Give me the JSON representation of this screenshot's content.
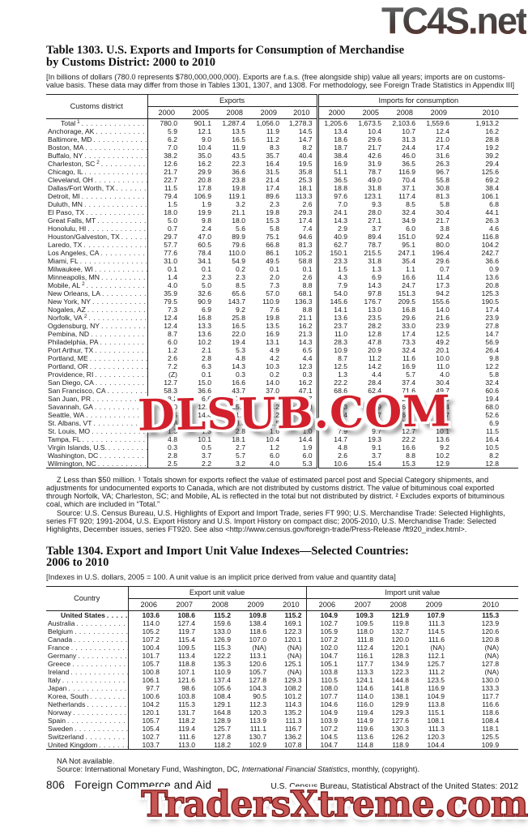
{
  "watermarks": {
    "top": "TC4S.net",
    "middle": "DLSUB.COM",
    "bottom": "TradersXtreme.com"
  },
  "colors": {
    "watermark_mid_red": "#d2202c",
    "watermark_bottom_red": "#c75654",
    "watermark_top_brown": "#7a3a30",
    "text": "#1a1a1a"
  },
  "table1303": {
    "title_line1": "Table 1303. U.S. Exports and Imports for Consumption of Merchandise",
    "title_line2": "by Customs District: 2000 to 2010",
    "note": "[In billions of dollars (780.0 represents $780,000,000,000). Exports are f.a.s. (free alongside ship) value all years; imports are on customs-value basis. These data may differ from those in Tables 1301, 1307, and 1308. For methodology, see Foreign Trade Statistics in Appendix III]",
    "header": {
      "label": "Customs district",
      "exports": "Exports",
      "imports": "Imports for consumption"
    },
    "years": [
      "2000",
      "2005",
      "2008",
      "2009",
      "2010"
    ],
    "rows": [
      {
        "l": "Total",
        "s": "1",
        "ind": true,
        "e": [
          "780.0",
          "901.1",
          "1,287.4",
          "1,056.0",
          "1,278.3"
        ],
        "i": [
          "1,205.6",
          "1,673.5",
          "2,103.6",
          "1,559.6",
          "1,913.2"
        ]
      },
      {
        "l": "Anchorage, AK",
        "e": [
          "5.9",
          "12.1",
          "13.5",
          "11.9",
          "14.5"
        ],
        "i": [
          "13.4",
          "10.4",
          "10.7",
          "12.4",
          "16.2"
        ]
      },
      {
        "l": "Baltimore, MD",
        "e": [
          "6.2",
          "9.0",
          "16.5",
          "11.2",
          "14.7"
        ],
        "i": [
          "18.6",
          "29.6",
          "31.3",
          "21.0",
          "28.8"
        ]
      },
      {
        "l": "Boston, MA",
        "e": [
          "7.0",
          "10.4",
          "11.9",
          "8.3",
          "8.2"
        ],
        "i": [
          "18.7",
          "21.7",
          "24.4",
          "17.4",
          "19.2"
        ]
      },
      {
        "l": "Buffalo, NY",
        "e": [
          "38.2",
          "35.0",
          "43.5",
          "35.7",
          "40.4"
        ],
        "i": [
          "38.4",
          "42.6",
          "46.0",
          "31.6",
          "39.2"
        ]
      },
      {
        "l": "Charleston, SC",
        "s": "2",
        "e": [
          "12.6",
          "16.2",
          "22.3",
          "16.4",
          "19.5"
        ],
        "i": [
          "16.9",
          "31.9",
          "36.5",
          "26.3",
          "29.4"
        ]
      },
      {
        "l": "Chicago, IL",
        "e": [
          "21.7",
          "29.9",
          "36.6",
          "31.5",
          "35.8"
        ],
        "i": [
          "51.1",
          "78.7",
          "116.9",
          "96.7",
          "125.6"
        ]
      },
      {
        "l": "Cleveland, OH",
        "e": [
          "22.7",
          "20.8",
          "23.8",
          "21.4",
          "25.3"
        ],
        "i": [
          "36.5",
          "49.0",
          "70.4",
          "55.8",
          "69.2"
        ]
      },
      {
        "l": "Dallas/Fort Worth, TX",
        "e": [
          "11.5",
          "17.8",
          "19.8",
          "17.4",
          "18.1"
        ],
        "i": [
          "18.8",
          "31.8",
          "37.1",
          "30.8",
          "38.4"
        ]
      },
      {
        "l": "Detroit, MI",
        "e": [
          "79.4",
          "106.9",
          "119.1",
          "89.6",
          "113.3"
        ],
        "i": [
          "97.6",
          "123.1",
          "117.4",
          "81.3",
          "106.1"
        ]
      },
      {
        "l": "Duluth, MN",
        "e": [
          "1.5",
          "1.9",
          "3.2",
          "2.3",
          "2.6"
        ],
        "i": [
          "7.0",
          "9.3",
          "8.5",
          "5.8",
          "6.8"
        ]
      },
      {
        "l": "El Paso, TX",
        "e": [
          "18.0",
          "19.9",
          "21.1",
          "19.8",
          "29.3"
        ],
        "i": [
          "24.1",
          "28.0",
          "32.4",
          "30.4",
          "44.1"
        ]
      },
      {
        "l": "Great Falls, MT",
        "e": [
          "5.0",
          "9.8",
          "18.0",
          "15.3",
          "17.4"
        ],
        "i": [
          "14.3",
          "27.1",
          "34.9",
          "21.7",
          "26.3"
        ]
      },
      {
        "l": "Honolulu, HI",
        "e": [
          "0.7",
          "2.4",
          "5.6",
          "5.8",
          "7.4"
        ],
        "i": [
          "2.9",
          "3.7",
          "6.0",
          "3.8",
          "4.6"
        ]
      },
      {
        "l": "Houston/Galveston, TX",
        "e": [
          "29.7",
          "47.0",
          "89.9",
          "75.1",
          "94.6"
        ],
        "i": [
          "40.9",
          "89.4",
          "151.0",
          "92.4",
          "116.8"
        ]
      },
      {
        "l": "Laredo, TX",
        "e": [
          "57.7",
          "60.5",
          "79.6",
          "66.8",
          "81.3"
        ],
        "i": [
          "62.7",
          "78.7",
          "95.1",
          "80.0",
          "104.2"
        ]
      },
      {
        "l": "Los Angeles, CA",
        "e": [
          "77.6",
          "78.4",
          "110.0",
          "86.1",
          "105.2"
        ],
        "i": [
          "150.1",
          "215.5",
          "247.1",
          "196.4",
          "242.7"
        ]
      },
      {
        "l": "Miami, FL",
        "e": [
          "31.0",
          "34.1",
          "54.9",
          "49.5",
          "58.8"
        ],
        "i": [
          "23.3",
          "31.8",
          "35.4",
          "29.6",
          "36.6"
        ]
      },
      {
        "l": "Milwaukee, WI",
        "e": [
          "0.1",
          "0.1",
          "0.2",
          "0.1",
          "0.1"
        ],
        "i": [
          "1.5",
          "1.3",
          "1.1",
          "0.7",
          "0.9"
        ]
      },
      {
        "l": "Minneapolis, MN",
        "e": [
          "1.4",
          "2.3",
          "2.3",
          "2.0",
          "2.6"
        ],
        "i": [
          "4.3",
          "6.9",
          "16.6",
          "11.4",
          "13.6"
        ]
      },
      {
        "l": "Mobile, AL",
        "s": "2",
        "e": [
          "4.0",
          "5.0",
          "8.5",
          "7.3",
          "8.8"
        ],
        "i": [
          "7.9",
          "14.3",
          "24.7",
          "17.3",
          "20.8"
        ]
      },
      {
        "l": "New Orleans, LA",
        "e": [
          "35.9",
          "32.6",
          "65.6",
          "57.0",
          "68.1"
        ],
        "i": [
          "54.0",
          "97.8",
          "151.3",
          "94.2",
          "125.3"
        ]
      },
      {
        "l": "New York, NY",
        "e": [
          "79.5",
          "90.9",
          "143.7",
          "110.9",
          "136.3"
        ],
        "i": [
          "145.6",
          "176.7",
          "209.5",
          "155.6",
          "190.5"
        ]
      },
      {
        "l": "Nogales, AZ",
        "e": [
          "7.3",
          "6.9",
          "9.2",
          "7.6",
          "8.8"
        ],
        "i": [
          "14.1",
          "13.0",
          "16.8",
          "14.0",
          "17.4"
        ]
      },
      {
        "l": "Norfolk, VA",
        "s": "2",
        "e": [
          "12.4",
          "16.8",
          "25.8",
          "19.8",
          "21.1"
        ],
        "i": [
          "13.6",
          "23.5",
          "29.6",
          "21.6",
          "23.9"
        ]
      },
      {
        "l": "Ogdensburg, NY",
        "e": [
          "12.4",
          "13.3",
          "16.5",
          "13.5",
          "16.2"
        ],
        "i": [
          "23.7",
          "28.2",
          "33.0",
          "23.9",
          "27.8"
        ]
      },
      {
        "l": "Pembina, ND",
        "e": [
          "8.7",
          "13.6",
          "22.0",
          "16.9",
          "21.3"
        ],
        "i": [
          "11.0",
          "12.8",
          "17.4",
          "12.5",
          "14.7"
        ]
      },
      {
        "l": "Philadelphia, PA",
        "e": [
          "6.0",
          "10.2",
          "19.4",
          "13.1",
          "14.3"
        ],
        "i": [
          "28.3",
          "47.8",
          "73.3",
          "49.2",
          "56.9"
        ]
      },
      {
        "l": "Port Arthur, TX",
        "e": [
          "1.2",
          "2.1",
          "5.3",
          "4.9",
          "6.5"
        ],
        "i": [
          "10.9",
          "20.9",
          "32.4",
          "20.1",
          "26.4"
        ]
      },
      {
        "l": "Portland, ME",
        "e": [
          "2.6",
          "2.8",
          "4.8",
          "4.2",
          "4.4"
        ],
        "i": [
          "8.7",
          "11.2",
          "11.6",
          "10.0",
          "9.8"
        ]
      },
      {
        "l": "Portland, OR",
        "e": [
          "7.2",
          "6.3",
          "14.3",
          "10.3",
          "12.3"
        ],
        "i": [
          "12.5",
          "14.2",
          "16.9",
          "11.0",
          "12.2"
        ]
      },
      {
        "l": "Providence, RI",
        "e": [
          "(Z)",
          "0.1",
          "0.3",
          "0.2",
          "0.3"
        ],
        "i": [
          "1.3",
          "4.4",
          "5.7",
          "4.0",
          "5.8"
        ]
      },
      {
        "l": "San Diego, CA",
        "e": [
          "12.7",
          "15.0",
          "16.6",
          "14.0",
          "16.2"
        ],
        "i": [
          "22.2",
          "28.4",
          "37.4",
          "30.4",
          "32.4"
        ]
      },
      {
        "l": "San Francisco, CA",
        "e": [
          "58.3",
          "36.6",
          "43.7",
          "37.0",
          "47.1"
        ],
        "i": [
          "68.6",
          "62.4",
          "71.6",
          "49.7",
          "60.6"
        ]
      },
      {
        "l": "San Juan, PR",
        "e": [
          "8.2",
          "6.6",
          "17.6",
          "10.3",
          "9.7"
        ],
        "i": [
          "11.3",
          "12.5",
          "21.6",
          "18.9",
          "19.4"
        ]
      },
      {
        "l": "Savannah, GA",
        "e": [
          "6.0",
          "12.6",
          "25.9",
          "21.2",
          "26.0"
        ],
        "i": [
          "20.3",
          "39.9",
          "62.7",
          "53.4",
          "68.0"
        ]
      },
      {
        "l": "Seattle, WA",
        "e": [
          "10.5",
          "14.4",
          "21.6",
          "16.2",
          "19.4"
        ],
        "i": [
          "33.4",
          "52.7",
          "60.7",
          "47.7",
          "52.6"
        ]
      },
      {
        "l": "St. Albans, VT",
        "e": [
          "4.8",
          "4.3",
          "3.8",
          "2.5",
          "3.3"
        ],
        "i": [
          "9.4",
          "12.6",
          "10.2",
          "7.6",
          "6.9"
        ]
      },
      {
        "l": "St. Louis, MO",
        "e": [
          "1.3",
          "1.3",
          "2.8",
          "1.6",
          "1.0"
        ],
        "i": [
          "7.9",
          "9.7",
          "12.7",
          "10.1",
          "11.5"
        ]
      },
      {
        "l": "Tampa, FL",
        "e": [
          "4.8",
          "10.1",
          "18.1",
          "10.4",
          "14.4"
        ],
        "i": [
          "14.7",
          "19.3",
          "22.2",
          "13.6",
          "16.4"
        ]
      },
      {
        "l": "Virgin Islands, U.S.",
        "e": [
          "0.3",
          "0.5",
          "2.7",
          "1.2",
          "1.9"
        ],
        "i": [
          "4.8",
          "9.1",
          "16.6",
          "9.2",
          "10.5"
        ]
      },
      {
        "l": "Washington, DC",
        "e": [
          "2.8",
          "3.7",
          "5.7",
          "6.0",
          "6.0"
        ],
        "i": [
          "2.6",
          "3.7",
          "8.8",
          "10.2",
          "8.2"
        ]
      },
      {
        "l": "Wilmington, NC",
        "e": [
          "2.5",
          "2.2",
          "3.2",
          "4.0",
          "5.3"
        ],
        "i": [
          "10.6",
          "15.4",
          "15.3",
          "12.9",
          "12.8"
        ]
      }
    ],
    "footnote": "Z Less than $50 million. ¹ Totals shown for exports reflect the value of estimated parcel post and Special Category shipments, and adjustments for undocumented exports to Canada, which are not distributed by customs district. The value of bituminous coal exported through Norfolk, VA; Charleston, SC; and Mobile, AL is reflected in the total but not distributed by district. ² Excludes exports of bituminous coal, which are included in “Total.”",
    "source": "Source: U.S. Census Bureau, U.S. Highlights of Export and Import Trade, series FT 990;  U.S. Merchandise Trade: Selected Highlights, series FT 920;  1991-2004, U.S. Export History and U.S. Import History on compact disc; 2005-2010, U.S. Merchandise Trade: Selected Highlights, December issues, series FT920. See also <http://www.census.gov/foreign-trade/Press-Release /ft920_index.html>."
  },
  "table1304": {
    "title_line1": "Table 1304. Export and Import Unit Value Indexes—Selected Countries:",
    "title_line2": "2006 to 2010",
    "note": "[Indexes in U.S. dollars, 2005 = 100. A unit value is an implicit price derived from value and quantity data]",
    "header": {
      "label": "Country",
      "exports": "Export unit value",
      "imports": "Import unit value"
    },
    "years": [
      "2006",
      "2007",
      "2008",
      "2009",
      "2010"
    ],
    "rows": [
      {
        "l": "United States",
        "b": true,
        "ind": true,
        "e": [
          "103.6",
          "108.6",
          "115.2",
          "109.8",
          "115.2"
        ],
        "i": [
          "104.9",
          "109.3",
          "121.9",
          "107.9",
          "115.3"
        ]
      },
      {
        "l": "Australia",
        "e": [
          "114.0",
          "127.4",
          "159.6",
          "138.4",
          "169.1"
        ],
        "i": [
          "102.7",
          "109.5",
          "119.8",
          "111.3",
          "123.9"
        ]
      },
      {
        "l": "Belgium",
        "e": [
          "105.2",
          "119.7",
          "133.0",
          "118.6",
          "122.3"
        ],
        "i": [
          "105.9",
          "118.0",
          "132.7",
          "114.5",
          "120.6"
        ]
      },
      {
        "l": "Canada",
        "e": [
          "107.2",
          "115.4",
          "126.9",
          "107.0",
          "120.1"
        ],
        "i": [
          "107.2",
          "111.8",
          "120.0",
          "111.6",
          "120.8"
        ]
      },
      {
        "l": "France",
        "e": [
          "100.4",
          "109.5",
          "115.3",
          "(NA)",
          "(NA)"
        ],
        "i": [
          "102.0",
          "112.4",
          "120.1",
          "(NA)",
          "(NA)"
        ]
      },
      {
        "l": "Germany",
        "e": [
          "101.7",
          "113.4",
          "122.2",
          "113.1",
          "(NA)"
        ],
        "i": [
          "104.7",
          "116.1",
          "128.3",
          "112.1",
          "(NA)"
        ]
      },
      {
        "l": "Greece",
        "e": [
          "105.7",
          "118.8",
          "135.3",
          "120.6",
          "125.1"
        ],
        "i": [
          "105.1",
          "117.7",
          "134.9",
          "125.7",
          "127.8"
        ]
      },
      {
        "l": "Ireland",
        "e": [
          "100.8",
          "107.1",
          "110.9",
          "105.7",
          "(NA)"
        ],
        "i": [
          "103.8",
          "113.3",
          "122.3",
          "111.2",
          "(NA)"
        ]
      },
      {
        "l": "Italy",
        "e": [
          "106.1",
          "121.6",
          "137.4",
          "127.8",
          "129.3"
        ],
        "i": [
          "110.5",
          "124.1",
          "144.8",
          "123.5",
          "130.0"
        ]
      },
      {
        "l": "Japan",
        "e": [
          "97.7",
          "98.6",
          "105.6",
          "104.3",
          "108.2"
        ],
        "i": [
          "108.0",
          "114.6",
          "141.8",
          "116.9",
          "133.3"
        ]
      },
      {
        "l": "Korea, South",
        "e": [
          "100.6",
          "103.8",
          "108.4",
          "90.5",
          "101.2"
        ],
        "i": [
          "107.7",
          "114.0",
          "138.1",
          "104.9",
          "117.7"
        ]
      },
      {
        "l": "Netherlands",
        "e": [
          "104.2",
          "115.3",
          "129.1",
          "112.3",
          "114.3"
        ],
        "i": [
          "104.6",
          "116.0",
          "129.9",
          "113.8",
          "116.6"
        ]
      },
      {
        "l": "Norway",
        "e": [
          "120.1",
          "131.7",
          "164.8",
          "120.3",
          "135.2"
        ],
        "i": [
          "104.9",
          "119.4",
          "129.3",
          "115.1",
          "118.6"
        ]
      },
      {
        "l": "Spain",
        "e": [
          "105.7",
          "118.2",
          "128.9",
          "113.9",
          "111.3"
        ],
        "i": [
          "103.9",
          "114.9",
          "127.6",
          "108.1",
          "108.4"
        ]
      },
      {
        "l": "Sweden",
        "e": [
          "105.4",
          "119.4",
          "125.7",
          "111.1",
          "116.7"
        ],
        "i": [
          "107.2",
          "119.6",
          "130.3",
          "111.3",
          "118.1"
        ]
      },
      {
        "l": "Switzerland",
        "e": [
          "102.7",
          "111.6",
          "127.8",
          "130.7",
          "136.2"
        ],
        "i": [
          "104.5",
          "113.6",
          "126.2",
          "120.3",
          "125.5"
        ]
      },
      {
        "l": "United Kingdom",
        "e": [
          "103.7",
          "113.0",
          "118.2",
          "102.9",
          "107.8"
        ],
        "i": [
          "104.7",
          "114.8",
          "118.9",
          "104.4",
          "109.9"
        ]
      }
    ],
    "na_note": "NA Not available.",
    "source_prefix": "Source: International Monetary Fund, Washington, DC, ",
    "source_italic": "International Financial Statistics",
    "source_suffix": ", monthly, (copyright)."
  },
  "page_footer": {
    "page": "806",
    "section": "Foreign Commerce and Aid",
    "right": "U.S. Census Bureau, Statistical Abstract of the United States: 2012"
  }
}
